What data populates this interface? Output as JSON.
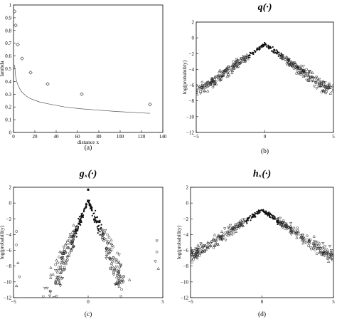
{
  "chart_data": [
    {
      "id": "a",
      "type": "scatter",
      "caption": "(a)",
      "title": "",
      "xlabel": "distance x",
      "ylabel": "lambda",
      "xlim": [
        0,
        140
      ],
      "ylim": [
        0,
        1
      ],
      "xticks": [
        "0",
        "20",
        "40",
        "60",
        "80",
        "100",
        "120",
        "140"
      ],
      "yticks": [
        "0",
        "0.1",
        "0.2",
        "0.3",
        "0.4",
        "0.5",
        "0.6",
        "0.7",
        "0.8",
        "0.9",
        "1"
      ],
      "series": [
        {
          "kind": "markers",
          "marker": "diamond",
          "x": [
            1,
            2,
            4,
            8,
            16,
            32,
            64,
            128
          ],
          "y": [
            0.95,
            0.84,
            0.69,
            0.58,
            0.47,
            0.38,
            0.3,
            0.22
          ]
        },
        {
          "kind": "line",
          "x": [
            1,
            2,
            3,
            4,
            6,
            8,
            12,
            16,
            24,
            32,
            48,
            64,
            96,
            128
          ],
          "y": [
            0.53,
            0.44,
            0.4,
            0.375,
            0.34,
            0.315,
            0.285,
            0.265,
            0.24,
            0.225,
            0.2,
            0.185,
            0.165,
            0.15
          ]
        }
      ]
    },
    {
      "id": "b",
      "type": "scatter",
      "caption": "(b)",
      "title": "q(·)",
      "xlabel": "",
      "ylabel": "log(probability)",
      "xlim": [
        -5,
        5
      ],
      "ylim": [
        -12,
        2
      ],
      "xticks": [
        "−5",
        "0",
        "5"
      ],
      "yticks": [
        "2",
        "0",
        "−2",
        "−4",
        "−6",
        "−8",
        "−10",
        "−12"
      ],
      "profile": {
        "peak": -0.8,
        "slope": 1.25,
        "floor": -6.6,
        "spread_edge": 0.55
      }
    },
    {
      "id": "c",
      "type": "scatter",
      "caption": "(c)",
      "title": "gₓ(·)",
      "xlabel": "",
      "ylabel": "log(probability)",
      "xlim": [
        -5,
        5
      ],
      "ylim": [
        -12,
        2
      ],
      "xticks": [
        "−5",
        "0",
        "5"
      ],
      "yticks": [
        "2",
        "0",
        "−2",
        "−4",
        "−6",
        "−8",
        "−10",
        "−12"
      ],
      "profile": {
        "peak": 0.3,
        "slope": 4.6,
        "outlier_y": 1.7,
        "spread_edge": 2.2
      }
    },
    {
      "id": "d",
      "type": "scatter",
      "caption": "(d)",
      "title": "hₓ(·)",
      "xlabel": "",
      "ylabel": "log(probability)",
      "xlim": [
        -5,
        5
      ],
      "ylim": [
        -12,
        2
      ],
      "xticks": [
        "−5",
        "0",
        "5"
      ],
      "yticks": [
        "2",
        "0",
        "−2",
        "−4",
        "−6",
        "−8",
        "−10",
        "−12"
      ],
      "profile": {
        "peak": -0.9,
        "slope": 1.2,
        "floor": -6.5,
        "spread_edge": 0.6
      }
    }
  ]
}
